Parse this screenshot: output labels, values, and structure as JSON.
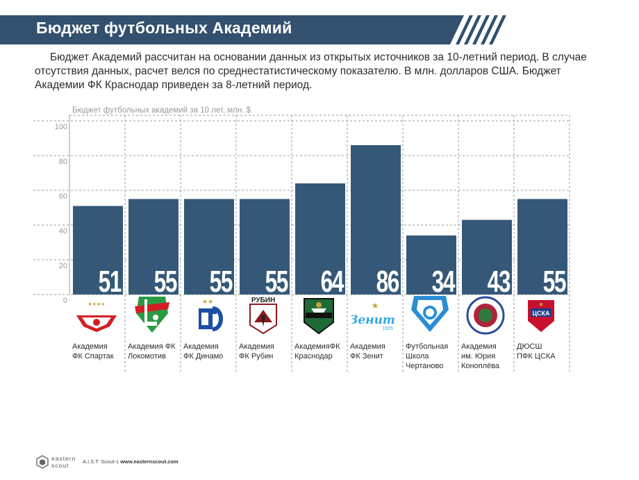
{
  "header": {
    "title": "Бюджет футбольных Академий",
    "color": "#33506f"
  },
  "intro": {
    "line1": "Бюджет Академий рассчитан на основании данных из открытых источников за 10-летний период. В случае",
    "line2": "отсутствия данных, расчет велся по среднестатистическому показателю. В млн. долларов США. Бюджет",
    "line3": "Академии ФК Краснодар приведен за 8-летний период."
  },
  "chart_data": {
    "type": "bar",
    "title": "Бюджет футбольных академий за 10 лет, млн. $",
    "categories": [
      "Академия ФК Спартак",
      "Академия ФК Локомотив",
      "Академия ФК Динамо",
      "Академия ФК Рубин",
      "АкадемияФК Краснодар",
      "Академия ФК Зенит",
      "Футбольная Школа Чертаново",
      "Академия им. Юрия Коноплёва",
      "ДЮСШ ПФК ЦСКА"
    ],
    "values": [
      51,
      55,
      55,
      55,
      64,
      86,
      34,
      43,
      55
    ],
    "ylim": [
      0,
      100
    ],
    "yticks": [
      "0",
      "20",
      "40",
      "60",
      "80",
      "100"
    ],
    "grid": true,
    "bar_color": "#355878"
  },
  "teams": [
    {
      "line1": "Академия",
      "line2": "ФК Спартак",
      "line3": "",
      "logo": "spartak-logo-icon"
    },
    {
      "line1": "Академия ФК",
      "line2": "Локомотив",
      "line3": "",
      "logo": "lokomotiv-logo-icon"
    },
    {
      "line1": "Академия",
      "line2": "ФК Динамо",
      "line3": "",
      "logo": "dinamo-logo-icon"
    },
    {
      "line1": "Академия",
      "line2": "ФК Рубин",
      "line3": "",
      "logo": "rubin-logo-icon",
      "logo_text": "РУБИН"
    },
    {
      "line1": "АкадемияФК",
      "line2": "Краснодар",
      "line3": "",
      "logo": "krasnodar-logo-icon"
    },
    {
      "line1": "Академия",
      "line2": "ФК Зенит",
      "line3": "",
      "logo": "zenit-logo-icon",
      "logo_text": "Зенит",
      "logo_year": "1925"
    },
    {
      "line1": "Футбольная",
      "line2": "Школа",
      "line3": "Чертаново",
      "logo": "chertanovo-logo-icon"
    },
    {
      "line1": "Академия",
      "line2": "им. Юрия",
      "line3": "Коноплёва",
      "logo": "konoplev-logo-icon"
    },
    {
      "line1": "ДЮСШ",
      "line2": "ПФК ЦСКА",
      "line3": "",
      "logo": "cska-logo-icon",
      "logo_text": "ЦСКА"
    }
  ],
  "footer": {
    "brand_line1": "eastern",
    "brand_line2": "scout",
    "text": "A.I.S.T. Scout-1",
    "url": "www.easternscout.com"
  }
}
